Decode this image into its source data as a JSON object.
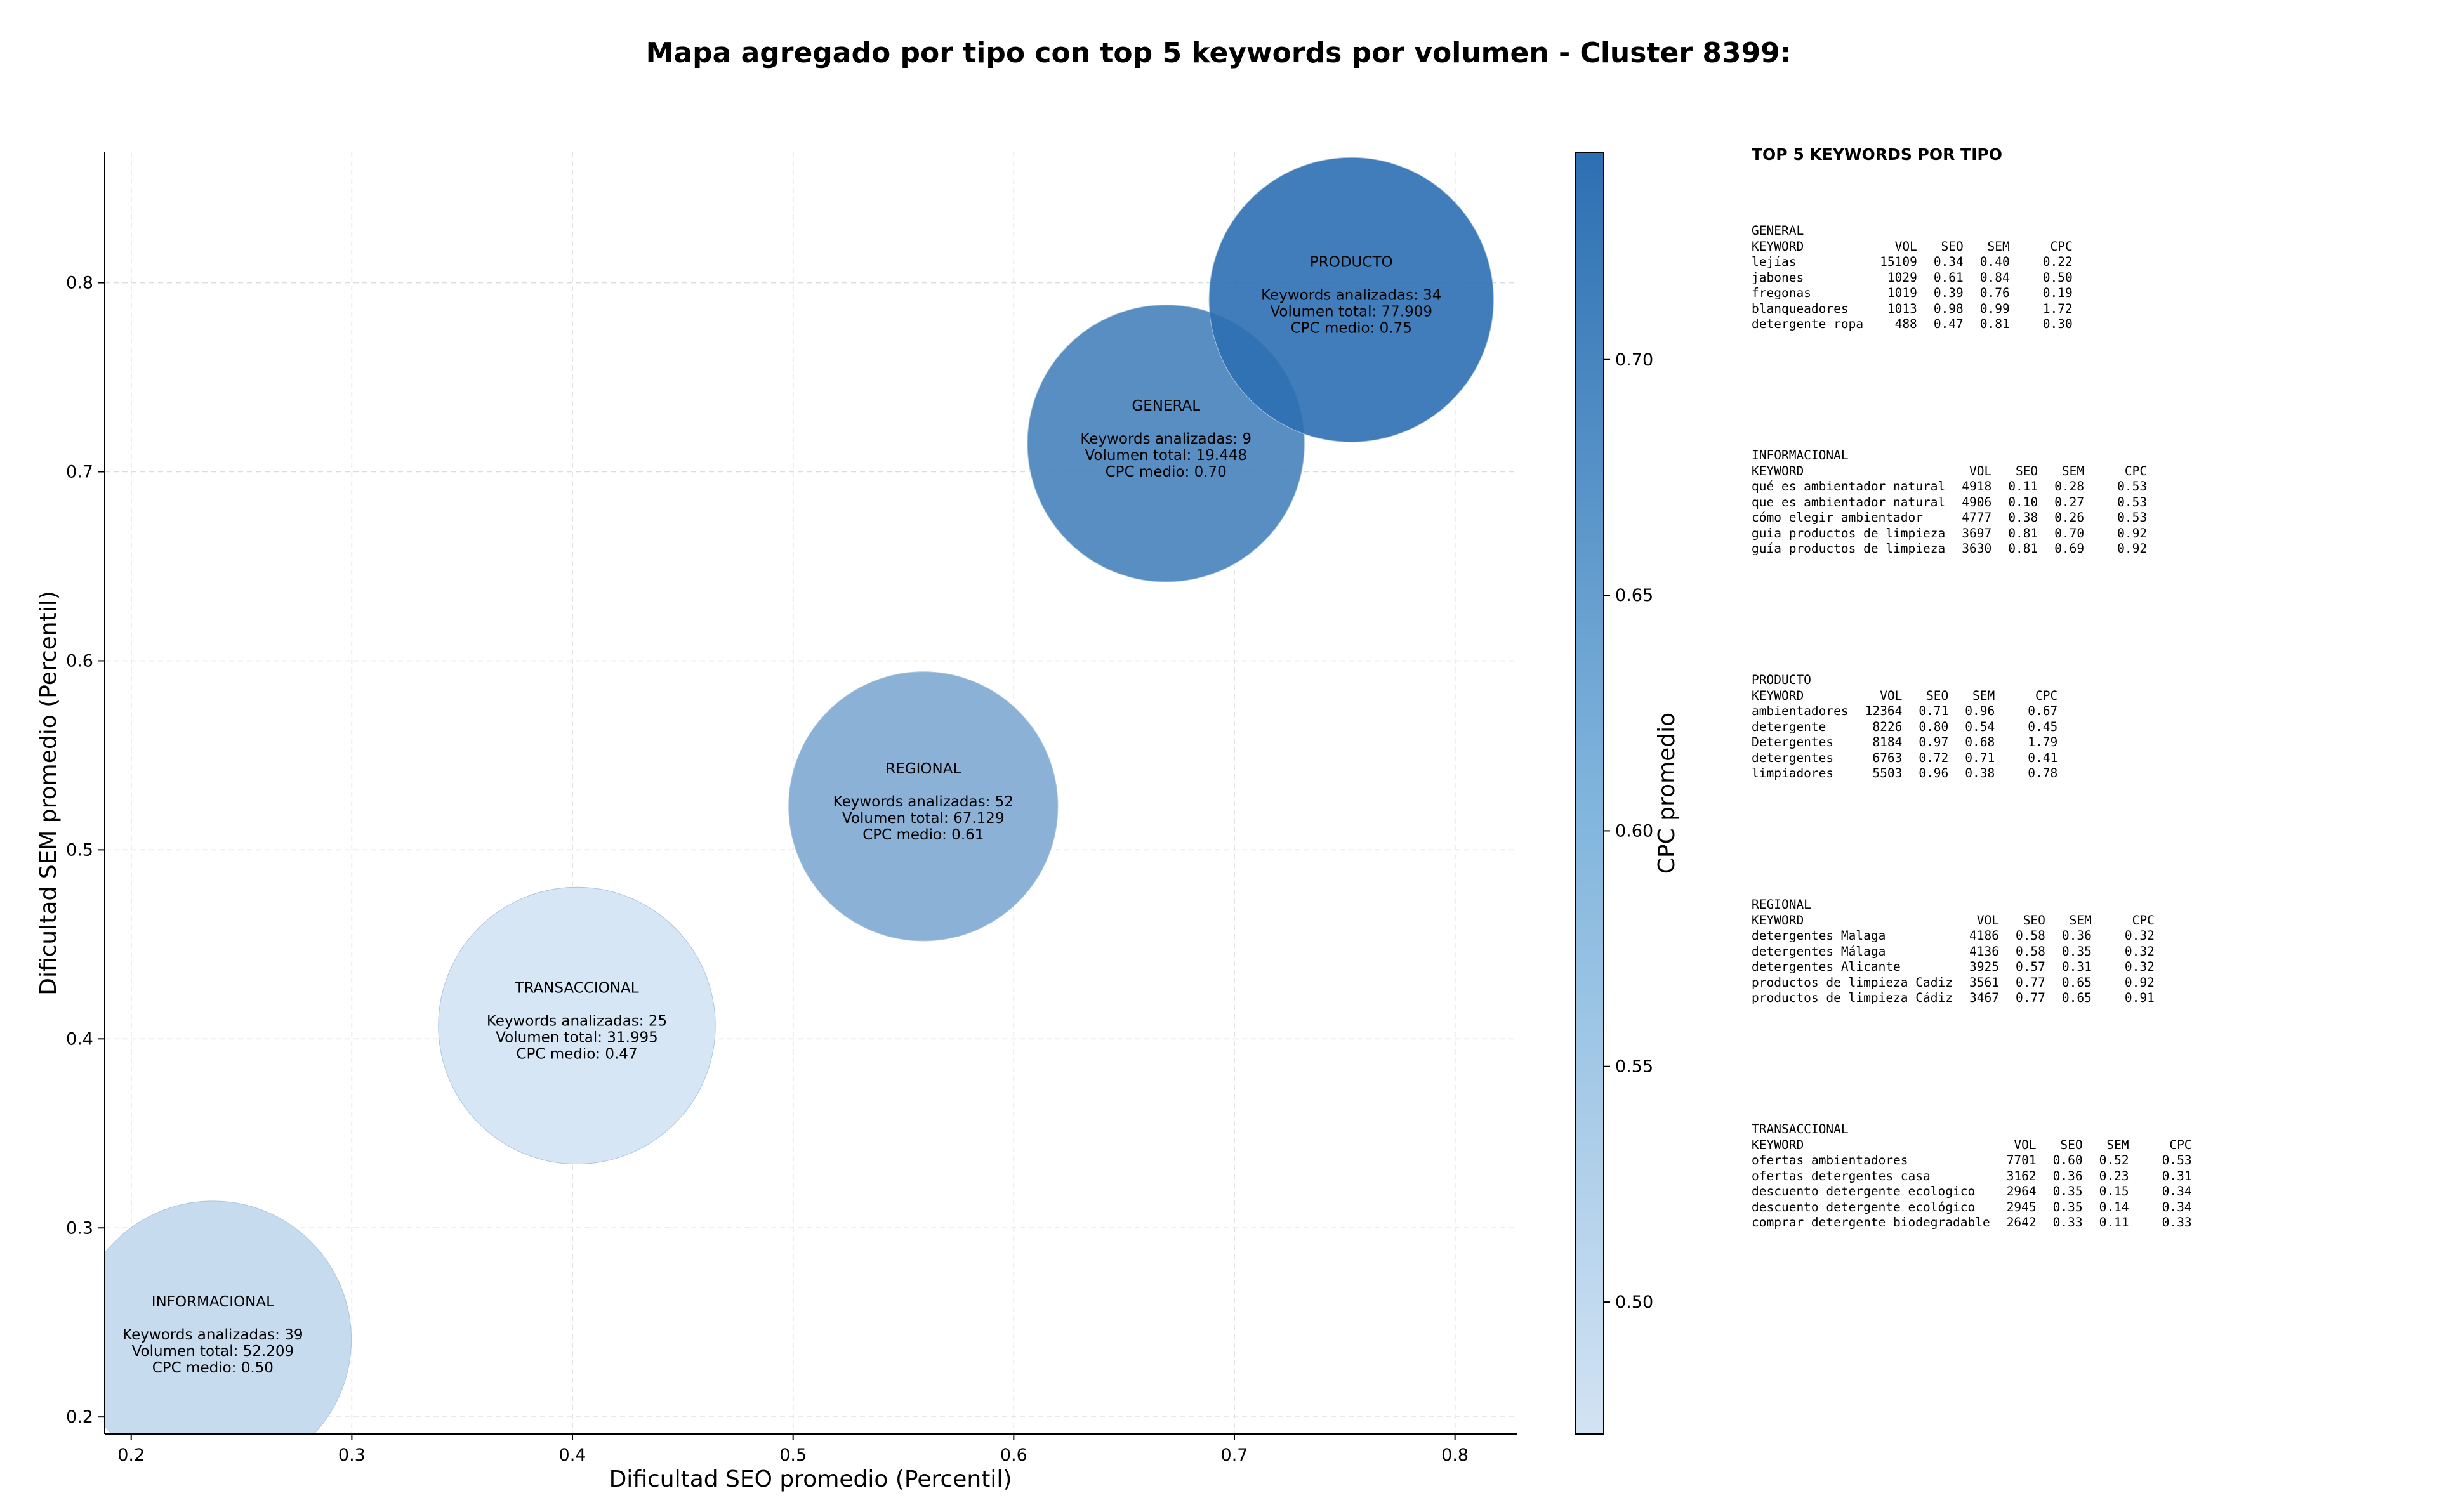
{
  "chart_data": {
    "type": "scatter",
    "title": "Mapa agregado por tipo con top 5 keywords por volumen - Cluster 8399:",
    "xlabel": "Dificultad SEO promedio (Percentil)",
    "ylabel": "Dificultad SEM promedio (Percentil)",
    "xlim": [
      0.188,
      0.828
    ],
    "ylim": [
      0.191,
      0.869
    ],
    "xticks": [
      "0.2",
      "0.3",
      "0.4",
      "0.5",
      "0.6",
      "0.7",
      "0.8"
    ],
    "yticks": [
      "0.2",
      "0.3",
      "0.4",
      "0.5",
      "0.6",
      "0.7",
      "0.8"
    ],
    "grid": true,
    "colorbar": {
      "label": "CPC promedio",
      "range": [
        0.472,
        0.744
      ],
      "ticks": [
        "0.50",
        "0.55",
        "0.60",
        "0.65",
        "0.70"
      ],
      "color_low": "#d2e3f3",
      "color_high": "#2c6fb2"
    },
    "bubbles": [
      {
        "name": "INFORMACIONAL",
        "x": 0.237,
        "y": 0.241,
        "size": 0.9,
        "cpc": 0.5,
        "line1": "Keywords analizadas: 39",
        "line2": "Volumen total: 52.209",
        "line3": "CPC medio: 0.50"
      },
      {
        "name": "TRANSACCIONAL",
        "x": 0.402,
        "y": 0.407,
        "size": 0.9,
        "cpc": 0.47,
        "line1": "Keywords analizadas: 25",
        "line2": "Volumen total: 31.995",
        "line3": "CPC medio: 0.47"
      },
      {
        "name": "REGIONAL",
        "x": 0.559,
        "y": 0.523,
        "size": 0.85,
        "cpc": 0.61,
        "line1": "Keywords analizadas: 52",
        "line2": "Volumen total: 67.129",
        "line3": "CPC medio: 0.61"
      },
      {
        "name": "GENERAL",
        "x": 0.669,
        "y": 0.715,
        "size": 0.9,
        "cpc": 0.7,
        "line1": "Keywords analizadas: 9",
        "line2": "Volumen total: 19.448",
        "line3": "CPC medio: 0.70"
      },
      {
        "name": "PRODUCTO",
        "x": 0.753,
        "y": 0.791,
        "size": 0.95,
        "cpc": 0.75,
        "line1": "Keywords analizadas: 34",
        "line2": "Volumen total: 77.909",
        "line3": "CPC medio: 0.75"
      }
    ]
  },
  "side_panel": {
    "heading": "TOP 5 KEYWORDS POR TIPO",
    "columns": [
      "KEYWORD",
      "VOL",
      "SEO",
      "SEM",
      "CPC"
    ],
    "groups": [
      {
        "name": "GENERAL",
        "rows": [
          [
            "lejías",
            "15109",
            "0.34",
            "0.40",
            "0.22"
          ],
          [
            "jabones",
            "1029",
            "0.61",
            "0.84",
            "0.50"
          ],
          [
            "fregonas",
            "1019",
            "0.39",
            "0.76",
            "0.19"
          ],
          [
            "blanqueadores",
            "1013",
            "0.98",
            "0.99",
            "1.72"
          ],
          [
            "detergente ropa",
            "488",
            "0.47",
            "0.81",
            "0.30"
          ]
        ]
      },
      {
        "name": "INFORMACIONAL",
        "rows": [
          [
            "qué es ambientador natural",
            "4918",
            "0.11",
            "0.28",
            "0.53"
          ],
          [
            "que es ambientador natural",
            "4906",
            "0.10",
            "0.27",
            "0.53"
          ],
          [
            "cómo elegir ambientador",
            "4777",
            "0.38",
            "0.26",
            "0.53"
          ],
          [
            "guia productos de limpieza",
            "3697",
            "0.81",
            "0.70",
            "0.92"
          ],
          [
            "guía productos de limpieza",
            "3630",
            "0.81",
            "0.69",
            "0.92"
          ]
        ]
      },
      {
        "name": "PRODUCTO",
        "rows": [
          [
            "ambientadores",
            "12364",
            "0.71",
            "0.96",
            "0.67"
          ],
          [
            "detergente",
            "8226",
            "0.80",
            "0.54",
            "0.45"
          ],
          [
            "Detergentes",
            "8184",
            "0.97",
            "0.68",
            "1.79"
          ],
          [
            "detergentes",
            "6763",
            "0.72",
            "0.71",
            "0.41"
          ],
          [
            "limpiadores",
            "5503",
            "0.96",
            "0.38",
            "0.78"
          ]
        ]
      },
      {
        "name": "REGIONAL",
        "rows": [
          [
            "detergentes Malaga",
            "4186",
            "0.58",
            "0.36",
            "0.32"
          ],
          [
            "detergentes Málaga",
            "4136",
            "0.58",
            "0.35",
            "0.32"
          ],
          [
            "detergentes Alicante",
            "3925",
            "0.57",
            "0.31",
            "0.32"
          ],
          [
            "productos de limpieza Cadiz",
            "3561",
            "0.77",
            "0.65",
            "0.92"
          ],
          [
            "productos de limpieza Cádiz",
            "3467",
            "0.77",
            "0.65",
            "0.91"
          ]
        ]
      },
      {
        "name": "TRANSACCIONAL",
        "rows": [
          [
            "ofertas ambientadores",
            "7701",
            "0.60",
            "0.52",
            "0.53"
          ],
          [
            "ofertas detergentes casa",
            "3162",
            "0.36",
            "0.23",
            "0.31"
          ],
          [
            "descuento detergente ecologico",
            "2964",
            "0.35",
            "0.15",
            "0.34"
          ],
          [
            "descuento detergente ecológico",
            "2945",
            "0.35",
            "0.14",
            "0.34"
          ],
          [
            "comprar detergente biodegradable",
            "2642",
            "0.33",
            "0.11",
            "0.33"
          ]
        ]
      }
    ]
  }
}
